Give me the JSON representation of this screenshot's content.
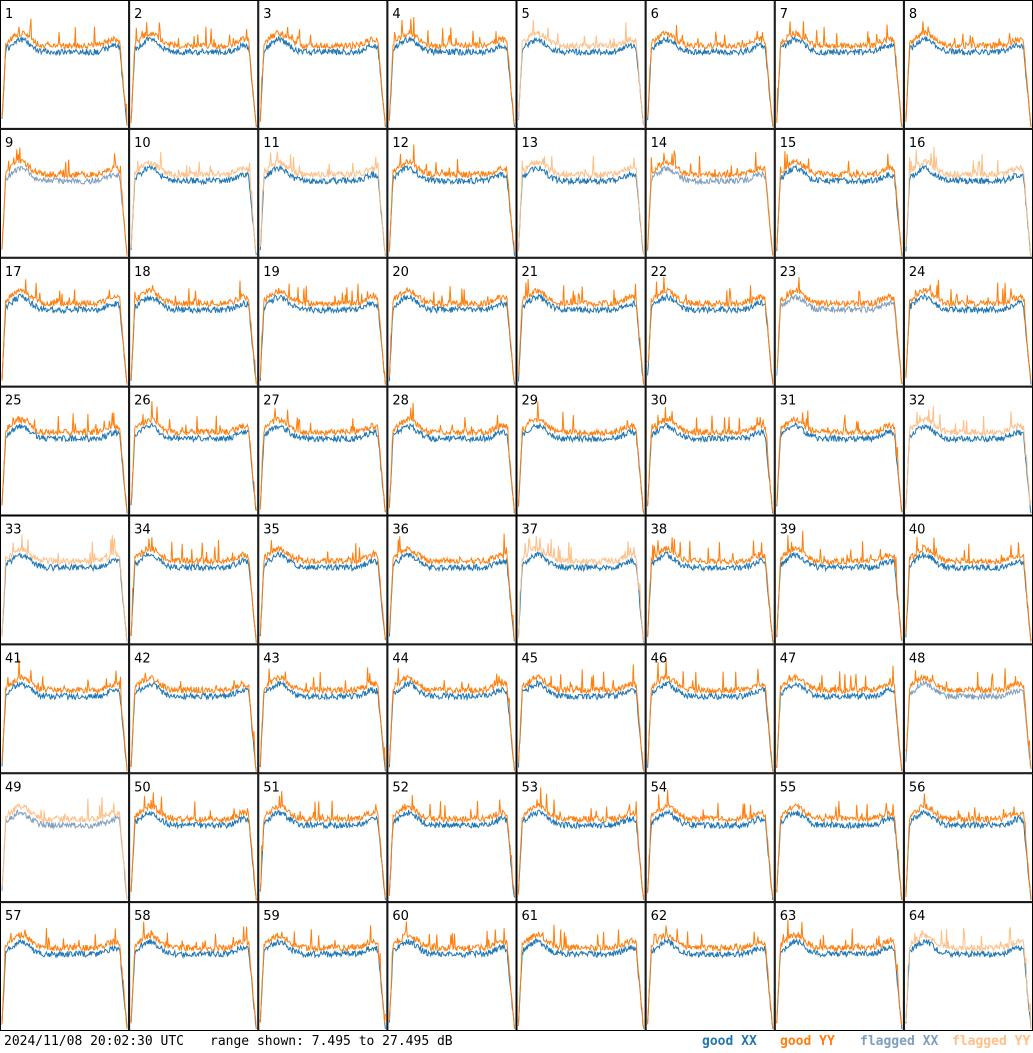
{
  "chart_data": {
    "type": "line",
    "panel_labels": [
      "1",
      "2",
      "3",
      "4",
      "5",
      "6",
      "7",
      "8",
      "9",
      "10",
      "11",
      "12",
      "13",
      "14",
      "15",
      "16",
      "17",
      "18",
      "19",
      "20",
      "21",
      "22",
      "23",
      "24",
      "25",
      "26",
      "27",
      "28",
      "29",
      "30",
      "31",
      "32",
      "33",
      "34",
      "35",
      "36",
      "37",
      "38",
      "39",
      "40",
      "41",
      "42",
      "43",
      "44",
      "45",
      "46",
      "47",
      "48",
      "49",
      "50",
      "51",
      "52",
      "53",
      "54",
      "55",
      "56",
      "57",
      "58",
      "59",
      "60",
      "61",
      "62",
      "63",
      "64"
    ],
    "ylim": [
      7.495,
      27.495
    ],
    "series": [
      {
        "name": "good XX",
        "color": "#1f77b4"
      },
      {
        "name": "good YY",
        "color": "#ff7f0e"
      },
      {
        "name": "flagged XX",
        "color": "#7f9fbf"
      },
      {
        "name": "flagged YY",
        "color": "#ffbf87"
      }
    ],
    "xx_status": [
      "good",
      "good",
      "good",
      "good",
      "good",
      "good",
      "good",
      "good",
      "flagged",
      "good",
      "good",
      "good",
      "good",
      "flagged",
      "good",
      "good",
      "good",
      "good",
      "good",
      "good",
      "good",
      "good",
      "flagged",
      "good",
      "good",
      "good",
      "good",
      "good",
      "good",
      "good",
      "good",
      "good",
      "good",
      "good",
      "good",
      "good",
      "good",
      "good",
      "good",
      "good",
      "good",
      "good",
      "good",
      "good",
      "good",
      "good",
      "good",
      "flagged",
      "flagged",
      "good",
      "good",
      "good",
      "good",
      "good",
      "good",
      "good",
      "good",
      "good",
      "good",
      "good",
      "good",
      "good",
      "good",
      "good"
    ],
    "yy_status": [
      "good",
      "good",
      "good",
      "good",
      "flagged",
      "good",
      "good",
      "good",
      "good",
      "flagged",
      "flagged",
      "good",
      "flagged",
      "good",
      "good",
      "flagged",
      "good",
      "good",
      "good",
      "good",
      "good",
      "good",
      "good",
      "good",
      "good",
      "good",
      "good",
      "good",
      "good",
      "good",
      "good",
      "flagged",
      "flagged",
      "good",
      "good",
      "good",
      "flagged",
      "good",
      "good",
      "good",
      "good",
      "good",
      "good",
      "good",
      "good",
      "good",
      "good",
      "good",
      "flagged",
      "good",
      "good",
      "good",
      "good",
      "good",
      "good",
      "good",
      "good",
      "good",
      "good",
      "good",
      "good",
      "good",
      "good",
      "flagged"
    ],
    "grid": false
  },
  "footer": {
    "timestamp": "2024/11/08 20:02:30 UTC",
    "range": "range shown: 7.495 to 27.495 dB"
  },
  "legend": [
    "good XX",
    "good YY",
    "flagged XX",
    "flagged YY"
  ]
}
